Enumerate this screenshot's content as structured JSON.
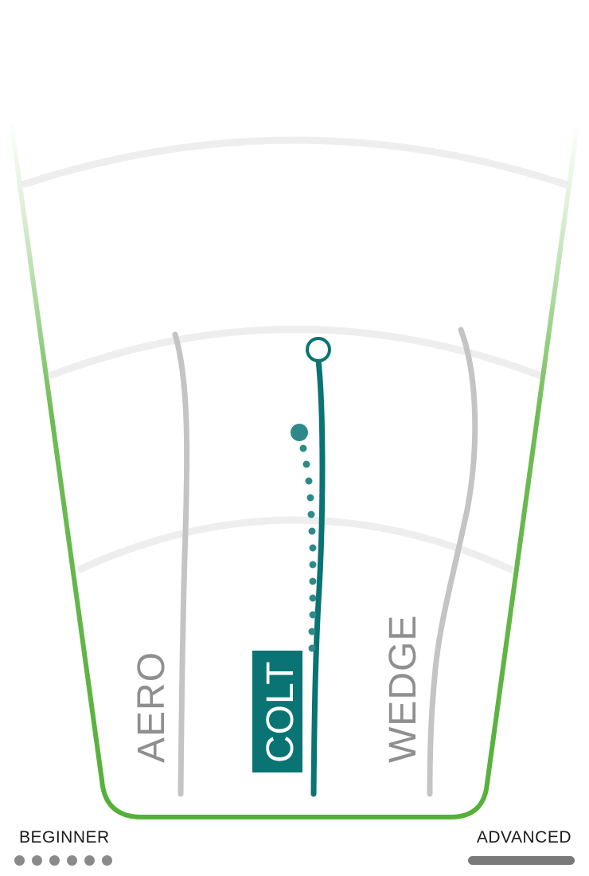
{
  "products": [
    {
      "name": "AERO",
      "highlighted": false
    },
    {
      "name": "COLT",
      "highlighted": true
    },
    {
      "name": "WEDGE",
      "highlighted": false
    }
  ],
  "scale": {
    "left_label": "BEGINNER",
    "right_label": "ADVANCED",
    "left_indicator": "dotted-line-icon",
    "right_indicator": "solid-bar-icon"
  },
  "colors": {
    "accent": "#0a7373",
    "frame": "#55b038",
    "inactive_line": "#c4c4c4",
    "guide_arc": "#eeeeee",
    "inactive_text": "#8f8f8f",
    "scale_indicator": "#808080"
  }
}
